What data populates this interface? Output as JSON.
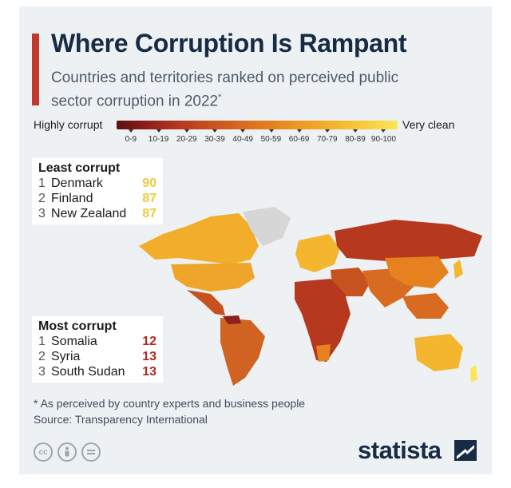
{
  "header": {
    "title": "Where Corruption Is Rampant",
    "subtitle": "Countries and territories ranked on perceived public sector corruption in 2022",
    "subtitle_marker": "*",
    "accent_color": "#c0392b"
  },
  "legend": {
    "low_label": "Highly corrupt",
    "high_label": "Very clean",
    "bins": [
      "0-9",
      "10-19",
      "20-29",
      "30-39",
      "40-49",
      "50-59",
      "60-69",
      "70-79",
      "80-89",
      "90-100"
    ],
    "colors": [
      "#5e1111",
      "#8f1f1a",
      "#b6381f",
      "#c6521f",
      "#d86a21",
      "#e5821f",
      "#ee9d24",
      "#f3b62e",
      "#f7cf3f",
      "#fae65a"
    ]
  },
  "least_corrupt": {
    "heading": "Least corrupt",
    "rows": [
      {
        "rank": "1",
        "country": "Denmark",
        "score": "90"
      },
      {
        "rank": "2",
        "country": "Finland",
        "score": "87"
      },
      {
        "rank": "3",
        "country": "New Zealand",
        "score": "87"
      }
    ]
  },
  "most_corrupt": {
    "heading": "Most corrupt",
    "rows": [
      {
        "rank": "1",
        "country": "Somalia",
        "score": "12"
      },
      {
        "rank": "2",
        "country": "Syria",
        "score": "13"
      },
      {
        "rank": "3",
        "country": "South Sudan",
        "score": "13"
      }
    ]
  },
  "footer": {
    "footnote": "* As perceived by country experts and business people",
    "source": "Source: Transparency International",
    "license_icons": [
      "cc-icon",
      "attribution-icon",
      "no-derivatives-icon"
    ],
    "brand": "statista"
  }
}
